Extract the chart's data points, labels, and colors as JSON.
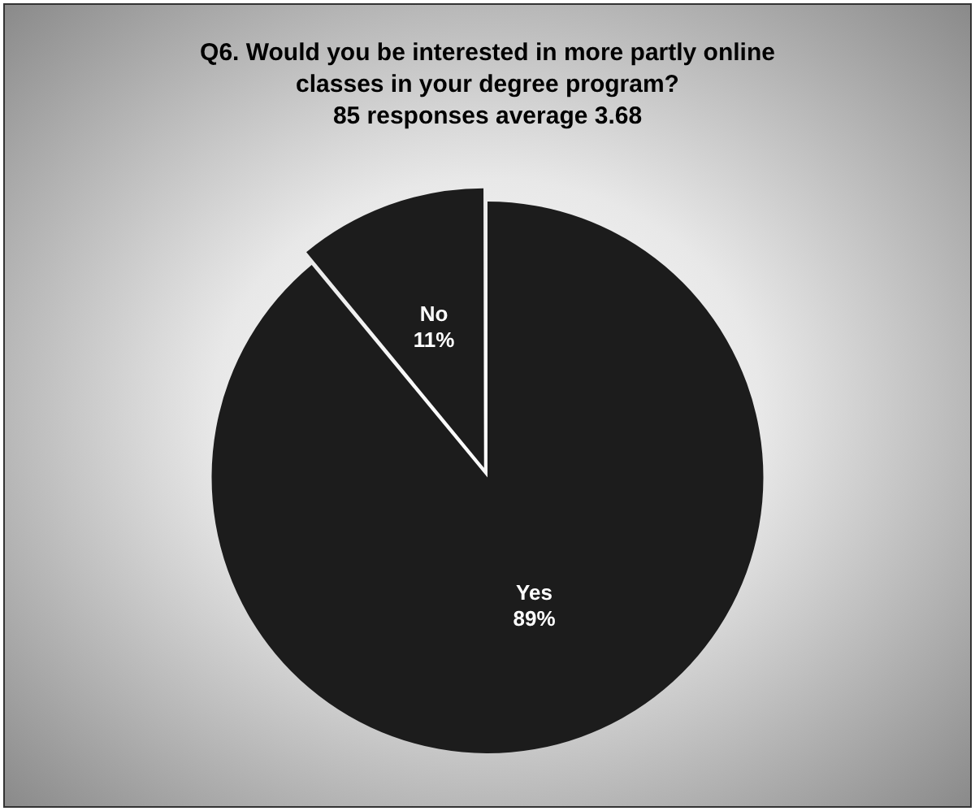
{
  "chart_data": {
    "type": "pie",
    "title": "Q6. Would you be interested in more partly online\nclasses in your degree program?\n85 responses average 3.68",
    "categories": [
      "Yes",
      "No"
    ],
    "values": [
      89,
      11
    ],
    "colors": [
      "#1c1c1c",
      "#1c1c1c"
    ],
    "value_labels": [
      "89%",
      "11%"
    ],
    "legend": false
  }
}
